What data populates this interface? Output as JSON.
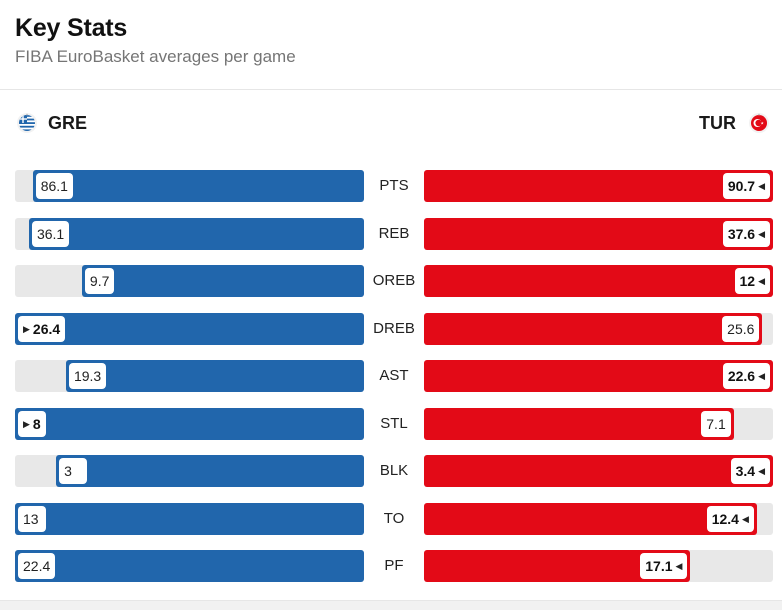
{
  "header": {
    "title": "Key Stats",
    "subtitle": "FIBA EuroBasket averages per game"
  },
  "teams": {
    "left": {
      "abbr": "GRE",
      "flag_icon": "greece-flag-icon",
      "color": "#2166ac"
    },
    "right": {
      "abbr": "TUR",
      "flag_icon": "turkey-flag-icon",
      "color": "#e30a17"
    }
  },
  "chart_data": {
    "type": "bar",
    "categories": [
      "PTS",
      "REB",
      "OREB",
      "DREB",
      "AST",
      "STL",
      "BLK",
      "TO",
      "PF"
    ],
    "series": [
      {
        "name": "GRE",
        "values": [
          86.1,
          36.1,
          9.7,
          26.4,
          19.3,
          8,
          3,
          13,
          22.4
        ]
      },
      {
        "name": "TUR",
        "values": [
          90.7,
          37.6,
          12,
          25.6,
          22.6,
          7.1,
          3.4,
          12.4,
          17.1
        ]
      }
    ],
    "leader": [
      "TUR",
      "TUR",
      "TUR",
      "GRE",
      "TUR",
      "GRE",
      "TUR",
      "TUR",
      "TUR"
    ],
    "value_labels": {
      "GRE": [
        "86.1",
        "36.1",
        "9.7",
        "26.4",
        "19.3",
        "8",
        "3",
        "13",
        "22.4"
      ],
      "TUR": [
        "90.7",
        "37.6",
        "12",
        "25.6",
        "22.6",
        "7.1",
        "3.4",
        "12.4",
        "17.1"
      ]
    },
    "legend": "none",
    "grid": false
  }
}
